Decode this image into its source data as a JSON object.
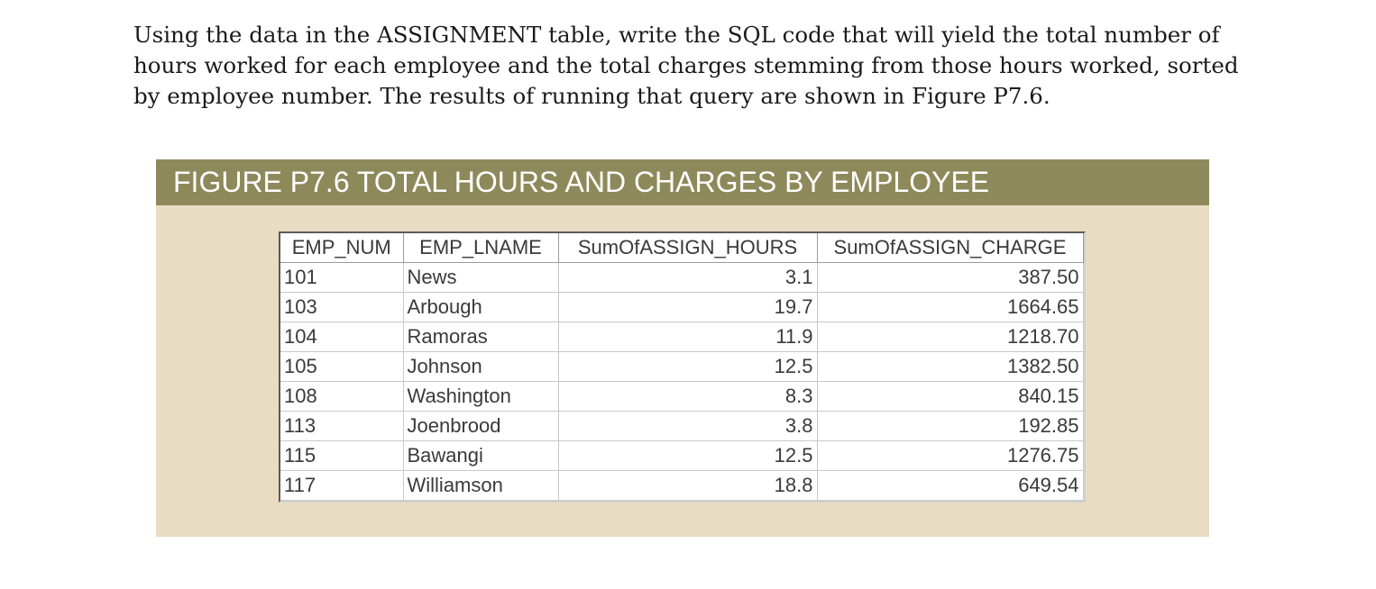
{
  "question": {
    "text": "Using the data in the ASSIGNMENT table, write the SQL code that will yield the total number of hours worked for each employee and the total charges stemming from those hours worked, sorted by employee number. The results of running that query are shown in Figure P7.6."
  },
  "figure": {
    "title": "FIGURE P7.6 TOTAL HOURS AND CHARGES BY EMPLOYEE",
    "header_color": "#8e895a",
    "background_color": "#e8dcc2"
  },
  "table": {
    "columns": [
      "EMP_NUM",
      "EMP_LNAME",
      "SumOfASSIGN_HOURS",
      "SumOfASSIGN_CHARGE"
    ],
    "rows": [
      {
        "emp_num": "101",
        "emp_lname": "News",
        "hours": "3.1",
        "charge": "387.50"
      },
      {
        "emp_num": "103",
        "emp_lname": "Arbough",
        "hours": "19.7",
        "charge": "1664.65"
      },
      {
        "emp_num": "104",
        "emp_lname": "Ramoras",
        "hours": "11.9",
        "charge": "1218.70"
      },
      {
        "emp_num": "105",
        "emp_lname": "Johnson",
        "hours": "12.5",
        "charge": "1382.50"
      },
      {
        "emp_num": "108",
        "emp_lname": "Washington",
        "hours": "8.3",
        "charge": "840.15"
      },
      {
        "emp_num": "113",
        "emp_lname": "Joenbrood",
        "hours": "3.8",
        "charge": "192.85"
      },
      {
        "emp_num": "115",
        "emp_lname": "Bawangi",
        "hours": "12.5",
        "charge": "1276.75"
      },
      {
        "emp_num": "117",
        "emp_lname": "Williamson",
        "hours": "18.8",
        "charge": "649.54"
      }
    ]
  }
}
